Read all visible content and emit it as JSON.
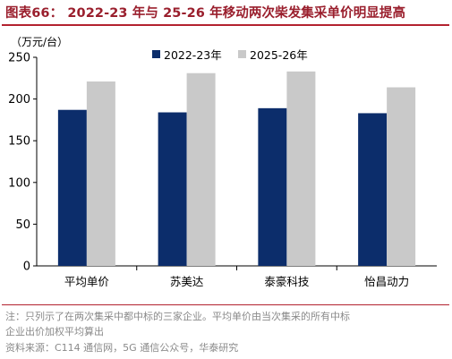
{
  "title": "图表66： 2022-23 年与 25-26 年移动两次柴发集采单价明显提高",
  "unit_label": "（万元/台）",
  "notes": {
    "line1": "注：只列示了在两次集采中都中标的三家企业。平均单价由当次集采的所有中标",
    "line2": "企业出价加权平均算出",
    "source": "资料来源：C114 通信网，5G 通信公众号，华泰研究"
  },
  "colors": {
    "series1": "#0c2d6b",
    "series2": "#c9c9c9",
    "title": "#9a1f2d",
    "rule": "#b3222f"
  },
  "chart_data": {
    "type": "bar",
    "categories": [
      "平均单价",
      "苏美达",
      "泰豪科技",
      "怡昌动力"
    ],
    "series": [
      {
        "name": "2022-23年",
        "values": [
          187,
          184,
          189,
          183
        ]
      },
      {
        "name": "2025-26年",
        "values": [
          221,
          231,
          233,
          214
        ]
      }
    ],
    "ylim": [
      0,
      250
    ],
    "yticks": [
      0,
      50,
      100,
      150,
      200,
      250
    ],
    "ylabel": "（万元/台）",
    "legend": "top"
  }
}
